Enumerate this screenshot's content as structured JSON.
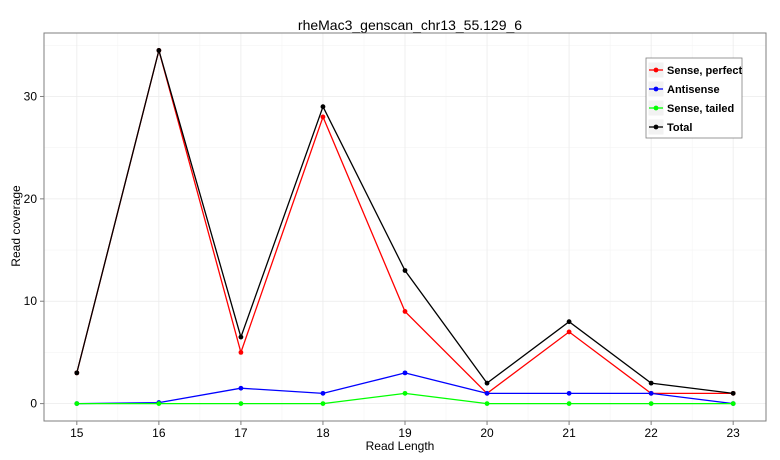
{
  "chart_data": {
    "type": "line",
    "title": "rheMac3_genscan_chr13_55.129_6",
    "xlabel": "Read Length",
    "ylabel": "Read coverage",
    "x": [
      15,
      16,
      17,
      18,
      19,
      20,
      21,
      22,
      23
    ],
    "x_tick_labels": [
      "15",
      "16",
      "17",
      "18",
      "19",
      "20",
      "21",
      "22",
      "23"
    ],
    "y_ticks": [
      0,
      10,
      20,
      30
    ],
    "y_tick_labels": [
      "0",
      "10",
      "20",
      "30"
    ],
    "xlim": [
      14.6,
      23.4
    ],
    "ylim": [
      -1.7,
      36.2
    ],
    "grid": true,
    "legend_position": "top-right",
    "series": [
      {
        "name": "Sense, perfect",
        "color": "#ff0000",
        "values": [
          3,
          34.5,
          5,
          28,
          9,
          1,
          7,
          1,
          1
        ]
      },
      {
        "name": "Antisense",
        "color": "#0000ff",
        "values": [
          0,
          0.1,
          1.5,
          1,
          3,
          1,
          1,
          1,
          0
        ]
      },
      {
        "name": "Sense, tailed",
        "color": "#00ff00",
        "values": [
          0,
          0,
          0,
          0,
          1,
          0,
          0,
          0,
          0
        ]
      },
      {
        "name": "Total",
        "color": "#000000",
        "values": [
          3,
          34.5,
          6.5,
          29,
          13,
          2,
          8,
          2,
          1
        ]
      }
    ]
  }
}
